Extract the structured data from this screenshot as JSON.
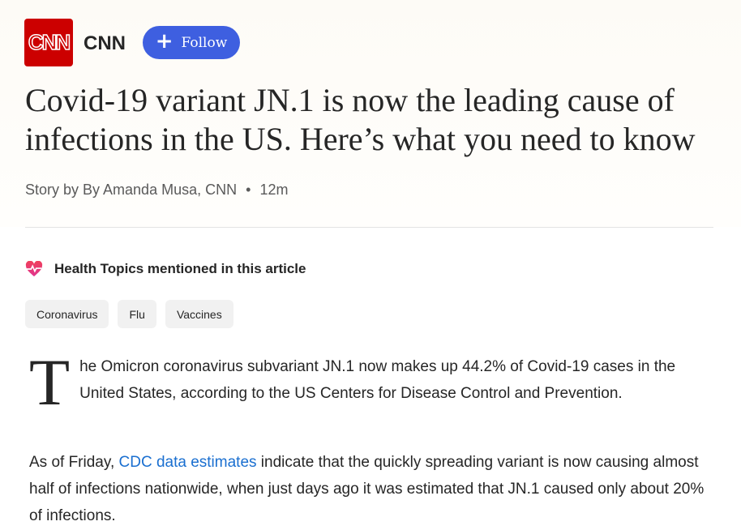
{
  "header": {
    "logo_text": "CNN",
    "source": "CNN",
    "follow_label": "Follow",
    "follow_color": "#3e5fe0"
  },
  "article": {
    "title": "Covid-19 variant JN.1 is now the leading cause of infections in the US. Here’s what you need to know",
    "byline": "Story by By Amanda Musa, CNN",
    "separator": "•",
    "time": "12m"
  },
  "topics": {
    "heading": "Health Topics mentioned in this article",
    "icon": "heart-pulse-icon",
    "chips": [
      "Coronavirus",
      "Flu",
      "Vaccines"
    ]
  },
  "body": {
    "p1_dropcap": "T",
    "p1_rest": "he Omicron coronavirus subvariant JN.1 now makes up 44.2% of Covid-19 cases in the United States, according to the US Centers for Disease Control and Prevention.",
    "p2_before": "As of Friday, ",
    "p2_link": "CDC data estimates",
    "p2_after": " indicate that the quickly spreading variant is now causing almost half of infections nationwide, when just days ago it was estimated that JN.1 caused only about 20% of infections."
  }
}
